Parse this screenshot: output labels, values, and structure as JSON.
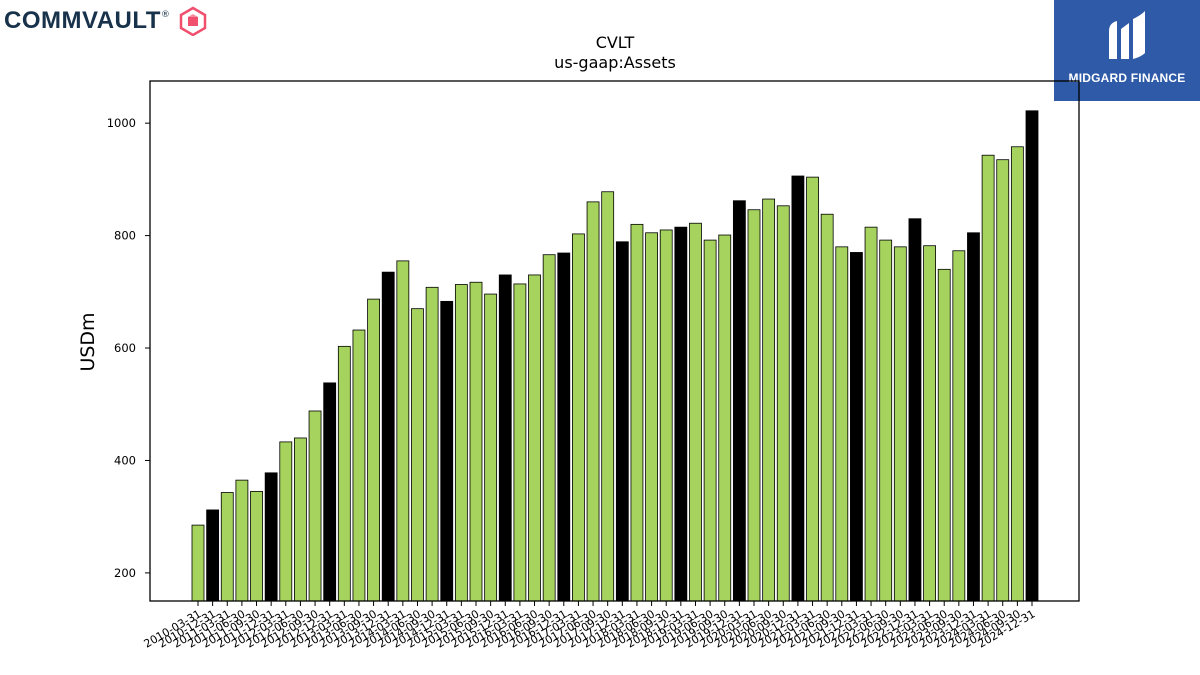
{
  "brand": {
    "name": "COMMVAULT",
    "trademark": "®"
  },
  "badge": {
    "name": "MIDGARD FINANCE"
  },
  "colors": {
    "primary_bar": "#a6d35e",
    "highlight_bar": "#000000",
    "brand_text": "#17324a",
    "brand_icon": "#f0506e",
    "badge_bg": "#2e5aa8"
  },
  "chart_data": {
    "type": "bar",
    "title": "CVLT",
    "subtitle": "us-gaap:Assets",
    "xlabel": "",
    "ylabel": "USDm",
    "ylim": [
      150,
      1075
    ],
    "yticks": [
      200,
      400,
      600,
      800,
      1000
    ],
    "categories": [
      "2010-03-31",
      "2010-12-31",
      "2011-03-31",
      "2011-06-30",
      "2011-09-30",
      "2011-12-31",
      "2012-03-31",
      "2012-06-30",
      "2012-09-30",
      "2012-12-31",
      "2013-03-31",
      "2013-06-30",
      "2013-09-30",
      "2013-12-31",
      "2014-03-31",
      "2014-06-30",
      "2014-09-30",
      "2014-12-31",
      "2015-03-31",
      "2015-06-30",
      "2015-09-30",
      "2015-12-31",
      "2016-03-31",
      "2016-06-30",
      "2016-09-30",
      "2016-12-31",
      "2017-03-31",
      "2017-06-30",
      "2017-09-30",
      "2017-12-31",
      "2018-03-31",
      "2018-06-30",
      "2018-09-30",
      "2018-12-31",
      "2019-03-31",
      "2019-06-30",
      "2019-09-30",
      "2019-12-31",
      "2020-03-31",
      "2020-06-30",
      "2020-09-30",
      "2020-12-31",
      "2021-03-31",
      "2021-06-30",
      "2021-09-30",
      "2021-12-31",
      "2022-03-31",
      "2022-06-30",
      "2022-09-30",
      "2022-12-31",
      "2023-03-31",
      "2023-06-30",
      "2023-09-30",
      "2023-12-31",
      "2024-03-31",
      "2024-06-30",
      "2024-09-30",
      "2024-12-31"
    ],
    "values": [
      285,
      312,
      343,
      365,
      345,
      378,
      433,
      440,
      488,
      538,
      603,
      632,
      687,
      735,
      755,
      670,
      708,
      683,
      713,
      717,
      696,
      730,
      714,
      730,
      766,
      769,
      803,
      860,
      878,
      789,
      820,
      805,
      810,
      815,
      822,
      792,
      801,
      862,
      846,
      865,
      853,
      906,
      904,
      838,
      780,
      770,
      815,
      792,
      780,
      830,
      782,
      740,
      773,
      805,
      943,
      935,
      958,
      1022
    ],
    "highlighted": [
      false,
      true,
      false,
      false,
      false,
      true,
      false,
      false,
      false,
      true,
      false,
      false,
      false,
      true,
      false,
      false,
      false,
      true,
      false,
      false,
      false,
      true,
      false,
      false,
      false,
      true,
      false,
      false,
      false,
      true,
      false,
      false,
      false,
      true,
      false,
      false,
      false,
      true,
      false,
      false,
      false,
      true,
      false,
      false,
      false,
      true,
      false,
      false,
      false,
      true,
      false,
      false,
      false,
      true,
      false,
      false,
      false,
      true
    ],
    "grid": false,
    "legend": "none"
  }
}
